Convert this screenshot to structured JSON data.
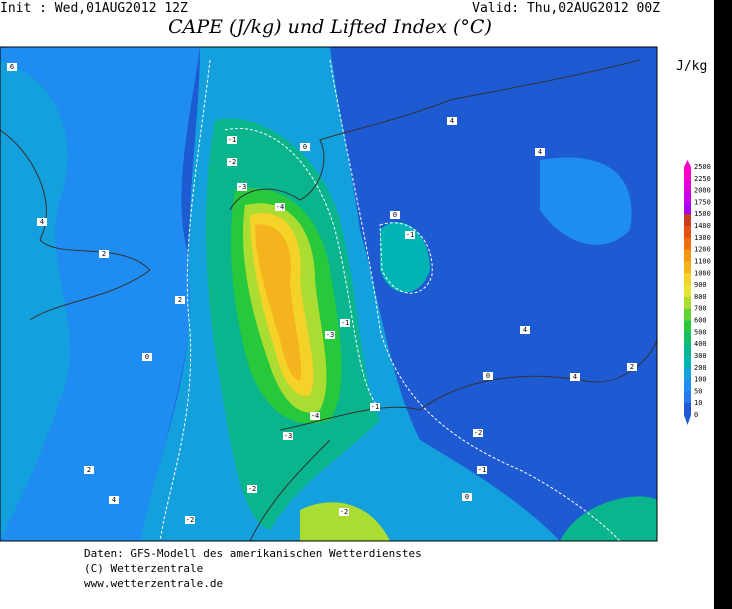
{
  "header": {
    "init": "Init : Wed,01AUG2012 12Z",
    "valid": "Valid: Thu,02AUG2012 00Z",
    "title": "CAPE (J/kg) und Lifted Index (°C)"
  },
  "colorbar": {
    "unit": "J/kg",
    "labels": [
      2500,
      2250,
      2000,
      1750,
      1500,
      1400,
      1300,
      1200,
      1100,
      1000,
      900,
      800,
      700,
      600,
      500,
      400,
      300,
      200,
      100,
      50,
      10,
      0
    ],
    "colors": [
      "#ff00c8",
      "#e600dc",
      "#c800e6",
      "#aa00f0",
      "#c83c1e",
      "#e65014",
      "#f06e0a",
      "#f59614",
      "#f5b41e",
      "#f5d228",
      "#e6e632",
      "#aadc32",
      "#64d232",
      "#28c83c",
      "#14be64",
      "#0ab48c",
      "#00b4b4",
      "#14a0dc",
      "#1e8cf0",
      "#2878f0",
      "#1e5ad2"
    ]
  },
  "map": {
    "contour_labels": [
      6,
      -1,
      -2,
      -3,
      -4,
      0,
      0,
      -1,
      -1,
      -3,
      -4,
      -3,
      -1,
      -2,
      -1,
      0,
      4,
      4,
      4,
      2,
      2,
      0,
      2,
      4,
      0,
      4,
      2,
      4,
      -2,
      -2,
      -2
    ]
  },
  "footer": {
    "line1": "Daten: GFS-Modell des amerikanischen Wetterdienstes",
    "line2": "(C) Wetterzentrale",
    "line3": "www.wetterzentrale.de"
  }
}
